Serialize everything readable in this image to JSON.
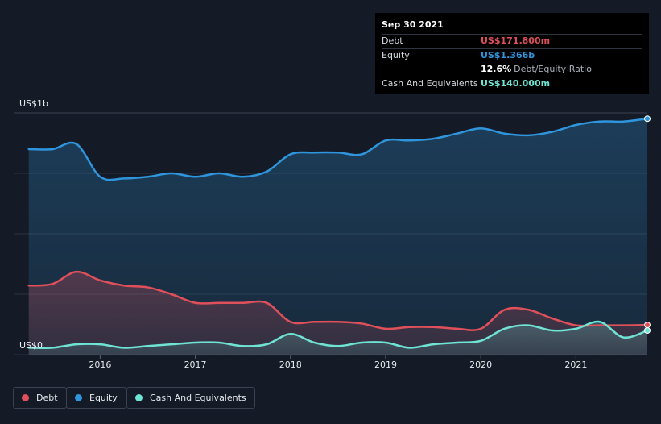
{
  "tooltip": {
    "date": "Sep 30 2021",
    "debt_label": "Debt",
    "debt_value": "US$171.800m",
    "equity_label": "Equity",
    "equity_value": "US$1.366b",
    "ratio_value": "12.6%",
    "ratio_label": "Debt/Equity Ratio",
    "cash_label": "Cash And Equivalents",
    "cash_value": "US$140.000m"
  },
  "legend": {
    "debt": "Debt",
    "equity": "Equity",
    "cash": "Cash And Equivalents"
  },
  "colors": {
    "debt": "#e0505b",
    "equity": "#2f95dc",
    "cash": "#6fe3d4",
    "background": "#151b26"
  },
  "chart_data": {
    "type": "area",
    "x_unit": "year",
    "xlim": [
      2015.1,
      2021.75
    ],
    "ylim": [
      0,
      1.4
    ],
    "y_unit": "US$ billions",
    "ytick_labels": [
      {
        "value": 0,
        "label": "US$0"
      },
      {
        "value": 1.4,
        "label": "US$1b"
      }
    ],
    "xticks": [
      2016,
      2017,
      2018,
      2019,
      2020,
      2021
    ],
    "xtick_labels": [
      "2016",
      "2017",
      "2018",
      "2019",
      "2020",
      "2021"
    ],
    "grid": true,
    "legend_position": "bottom-left",
    "series": [
      {
        "name": "Equity",
        "x": [
          2015.25,
          2015.5,
          2015.75,
          2016.0,
          2016.25,
          2016.5,
          2016.75,
          2017.0,
          2017.25,
          2017.5,
          2017.75,
          2018.0,
          2018.25,
          2018.5,
          2018.75,
          2019.0,
          2019.25,
          2019.5,
          2019.75,
          2020.0,
          2020.25,
          2020.5,
          2020.75,
          2021.0,
          2021.25,
          2021.5,
          2021.75
        ],
        "values": [
          1.19,
          1.19,
          1.22,
          1.03,
          1.02,
          1.03,
          1.05,
          1.03,
          1.05,
          1.03,
          1.06,
          1.16,
          1.17,
          1.17,
          1.16,
          1.24,
          1.24,
          1.25,
          1.28,
          1.31,
          1.28,
          1.27,
          1.29,
          1.33,
          1.35,
          1.35,
          1.366
        ]
      },
      {
        "name": "Debt",
        "x": [
          2015.25,
          2015.5,
          2015.75,
          2016.0,
          2016.25,
          2016.5,
          2016.75,
          2017.0,
          2017.25,
          2017.5,
          2017.75,
          2018.0,
          2018.25,
          2018.5,
          2018.75,
          2019.0,
          2019.25,
          2019.5,
          2019.75,
          2020.0,
          2020.25,
          2020.5,
          2020.75,
          2021.0,
          2021.25,
          2021.5,
          2021.75
        ],
        "values": [
          0.4,
          0.41,
          0.48,
          0.43,
          0.4,
          0.39,
          0.35,
          0.3,
          0.3,
          0.3,
          0.3,
          0.19,
          0.19,
          0.19,
          0.18,
          0.15,
          0.16,
          0.16,
          0.15,
          0.15,
          0.26,
          0.26,
          0.21,
          0.17,
          0.17,
          0.17,
          0.172
        ]
      },
      {
        "name": "Cash And Equivalents",
        "x": [
          2015.25,
          2015.5,
          2015.75,
          2016.0,
          2016.25,
          2016.5,
          2016.75,
          2017.0,
          2017.25,
          2017.5,
          2017.75,
          2018.0,
          2018.25,
          2018.5,
          2018.75,
          2019.0,
          2019.25,
          2019.5,
          2019.75,
          2020.0,
          2020.25,
          2020.5,
          2020.75,
          2021.0,
          2021.25,
          2021.5,
          2021.75
        ],
        "values": [
          0.04,
          0.04,
          0.06,
          0.06,
          0.04,
          0.05,
          0.06,
          0.07,
          0.07,
          0.05,
          0.06,
          0.12,
          0.07,
          0.05,
          0.07,
          0.07,
          0.04,
          0.06,
          0.07,
          0.08,
          0.15,
          0.17,
          0.14,
          0.15,
          0.19,
          0.1,
          0.14
        ]
      }
    ]
  }
}
